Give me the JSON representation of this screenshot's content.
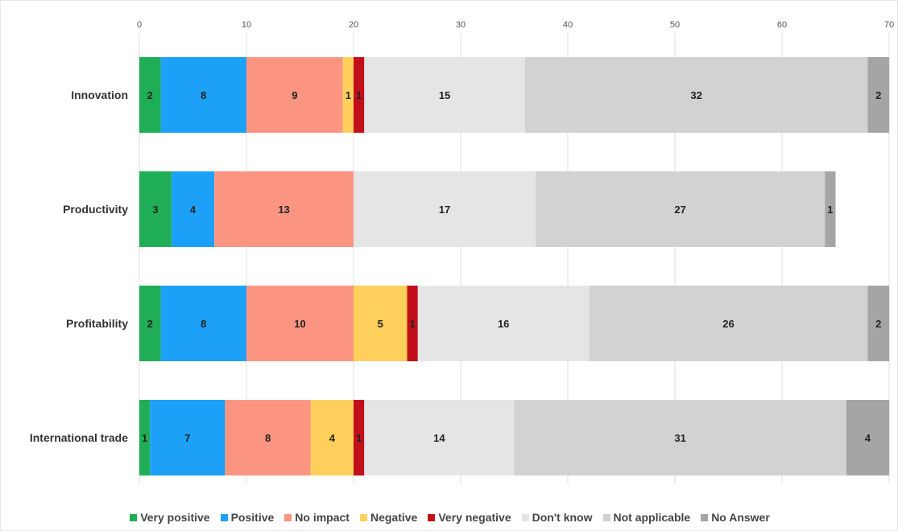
{
  "chart_data": {
    "type": "bar",
    "orientation": "horizontal",
    "stacked": true,
    "title": "",
    "xlabel": "",
    "ylabel": "",
    "xlim": [
      0,
      70
    ],
    "xticks": [
      0,
      10,
      20,
      30,
      40,
      50,
      60,
      70
    ],
    "x_axis_position": "top",
    "grid": true,
    "legend_position": "bottom",
    "categories": [
      "Innovation",
      "Productivity",
      "Profitability",
      "International trade"
    ],
    "series": [
      {
        "name": "Very positive",
        "color": "#1fae55",
        "values": [
          2,
          3,
          2,
          1
        ]
      },
      {
        "name": "Positive",
        "color": "#1da1f8",
        "values": [
          8,
          4,
          8,
          7
        ]
      },
      {
        "name": "No impact",
        "color": "#fb9582",
        "values": [
          9,
          13,
          10,
          8
        ]
      },
      {
        "name": "Negative",
        "color": "#fed05b",
        "values": [
          1,
          0,
          5,
          4
        ]
      },
      {
        "name": "Very negative",
        "color": "#c2101a",
        "values": [
          1,
          0,
          1,
          1
        ]
      },
      {
        "name": "Don't know",
        "color": "#e5e5e5",
        "values": [
          15,
          17,
          16,
          14
        ]
      },
      {
        "name": "Not applicable",
        "color": "#d2d2d2",
        "values": [
          32,
          27,
          26,
          31
        ]
      },
      {
        "name": "No Answer",
        "color": "#a5a5a5",
        "values": [
          2,
          1,
          2,
          4
        ]
      }
    ]
  }
}
